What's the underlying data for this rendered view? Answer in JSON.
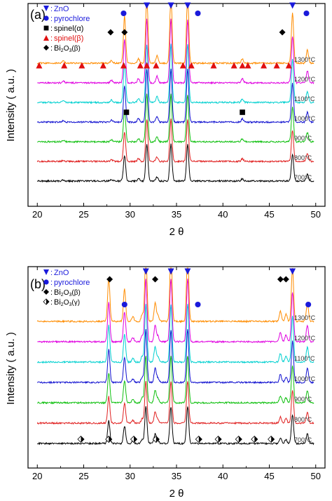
{
  "chart_data": [
    {
      "type": "line",
      "panel_label": "(a)",
      "xlabel": "2 θ",
      "ylabel": "Intensity ( a.u. )",
      "xlim": [
        19,
        51
      ],
      "x_ticks": [
        20,
        25,
        30,
        35,
        40,
        45,
        50
      ],
      "series": [
        {
          "name": "700°C",
          "color": "#000000"
        },
        {
          "name": "800°C",
          "color": "#e02020"
        },
        {
          "name": "900°C",
          "color": "#10c010"
        },
        {
          "name": "1000°C",
          "color": "#1010d0"
        },
        {
          "name": "1100°C",
          "color": "#00d0d0"
        },
        {
          "name": "1200°C",
          "color": "#e000e0"
        },
        {
          "name": "1300°C",
          "color": "#ff8c00"
        }
      ],
      "legend": [
        {
          "label": "ZnO",
          "marker": "triangle-down",
          "color": "#1a1adb"
        },
        {
          "label": "pyrochlore",
          "marker": "circle",
          "color": "#1a1adb"
        },
        {
          "label": "spinel(α)",
          "marker": "square",
          "color": "#000000"
        },
        {
          "label": "spinel(β)",
          "marker": "triangle-up",
          "color": "#e01010"
        },
        {
          "label": "Bi2O3(β)",
          "marker": "diamond",
          "color": "#000000"
        }
      ],
      "marker_labels": [
        {
          "marker": "triangle-down",
          "color": "#1a1adb",
          "x": [
            31.8,
            34.4,
            36.2,
            47.5
          ]
        },
        {
          "marker": "circle",
          "color": "#1a1adb",
          "x": [
            29.3,
            37.3,
            49.0
          ]
        },
        {
          "marker": "square",
          "color": "#000000",
          "x": [
            29.6,
            42.1
          ]
        },
        {
          "marker": "triangle-up",
          "color": "#e01010",
          "x": [
            20.2,
            22.9,
            24.8,
            27.1,
            29.3,
            31.1,
            31.8,
            32.8,
            35.7,
            36.6,
            39.0,
            41.2,
            42.1,
            42.7,
            44.4,
            45.8,
            47.1
          ]
        },
        {
          "marker": "diamond",
          "color": "#000000",
          "x": [
            27.9,
            29.4,
            46.4
          ]
        }
      ],
      "peaks": [
        {
          "x": 29.4,
          "h": 65
        },
        {
          "x": 31.8,
          "h": 95
        },
        {
          "x": 34.4,
          "h": 95
        },
        {
          "x": 36.2,
          "h": 95
        },
        {
          "x": 47.5,
          "h": 70
        },
        {
          "x": 49.1,
          "h": 18
        },
        {
          "x": 30.9,
          "h": 6
        },
        {
          "x": 32.9,
          "h": 10
        },
        {
          "x": 42.1,
          "h": 6
        },
        {
          "x": 22.8,
          "h": 3
        },
        {
          "x": 28.0,
          "h": 4
        }
      ]
    },
    {
      "type": "line",
      "panel_label": "(b)",
      "xlabel": "2 θ",
      "ylabel": "Intensity ( a.u. )",
      "xlim": [
        19,
        51
      ],
      "x_ticks": [
        20,
        25,
        30,
        35,
        40,
        45,
        50
      ],
      "series": [
        {
          "name": "700°C",
          "color": "#000000"
        },
        {
          "name": "800°C",
          "color": "#e02020"
        },
        {
          "name": "900°C",
          "color": "#10c010"
        },
        {
          "name": "1000°C",
          "color": "#1010d0"
        },
        {
          "name": "1100°C",
          "color": "#00d0d0"
        },
        {
          "name": "1200°C",
          "color": "#e000e0"
        },
        {
          "name": "1300°C",
          "color": "#ff8c00"
        }
      ],
      "legend": [
        {
          "label": "ZnO",
          "marker": "triangle-down",
          "color": "#1a1adb"
        },
        {
          "label": "pyrochlore",
          "marker": "circle",
          "color": "#1a1adb"
        },
        {
          "label": "Bi2O3(β)",
          "marker": "diamond",
          "color": "#000000"
        },
        {
          "label": "Bi2O3(γ)",
          "marker": "half-diamond",
          "color": "#000000"
        }
      ],
      "marker_labels": [
        {
          "marker": "triangle-down",
          "color": "#1a1adb",
          "x": [
            31.7,
            34.4,
            36.2,
            47.5
          ]
        },
        {
          "marker": "circle",
          "color": "#1a1adb",
          "x": [
            29.4,
            37.3,
            49.2
          ]
        },
        {
          "marker": "diamond",
          "color": "#000000",
          "x": [
            27.8,
            32.7,
            46.2,
            46.8
          ]
        },
        {
          "marker": "half-diamond",
          "color": "#000000",
          "x": [
            24.7,
            27.7,
            30.4,
            32.8,
            37.4,
            39.5,
            41.7,
            43.4,
            45.2
          ]
        }
      ],
      "peaks": [
        {
          "x": 27.7,
          "h": 60
        },
        {
          "x": 29.4,
          "h": 45
        },
        {
          "x": 31.7,
          "h": 95
        },
        {
          "x": 34.4,
          "h": 95
        },
        {
          "x": 36.2,
          "h": 95
        },
        {
          "x": 47.5,
          "h": 75
        },
        {
          "x": 49.1,
          "h": 25
        },
        {
          "x": 32.7,
          "h": 25
        },
        {
          "x": 31.3,
          "h": 10
        },
        {
          "x": 46.2,
          "h": 14
        },
        {
          "x": 46.8,
          "h": 10
        },
        {
          "x": 33.0,
          "h": 8
        },
        {
          "x": 30.3,
          "h": 6
        }
      ]
    }
  ]
}
